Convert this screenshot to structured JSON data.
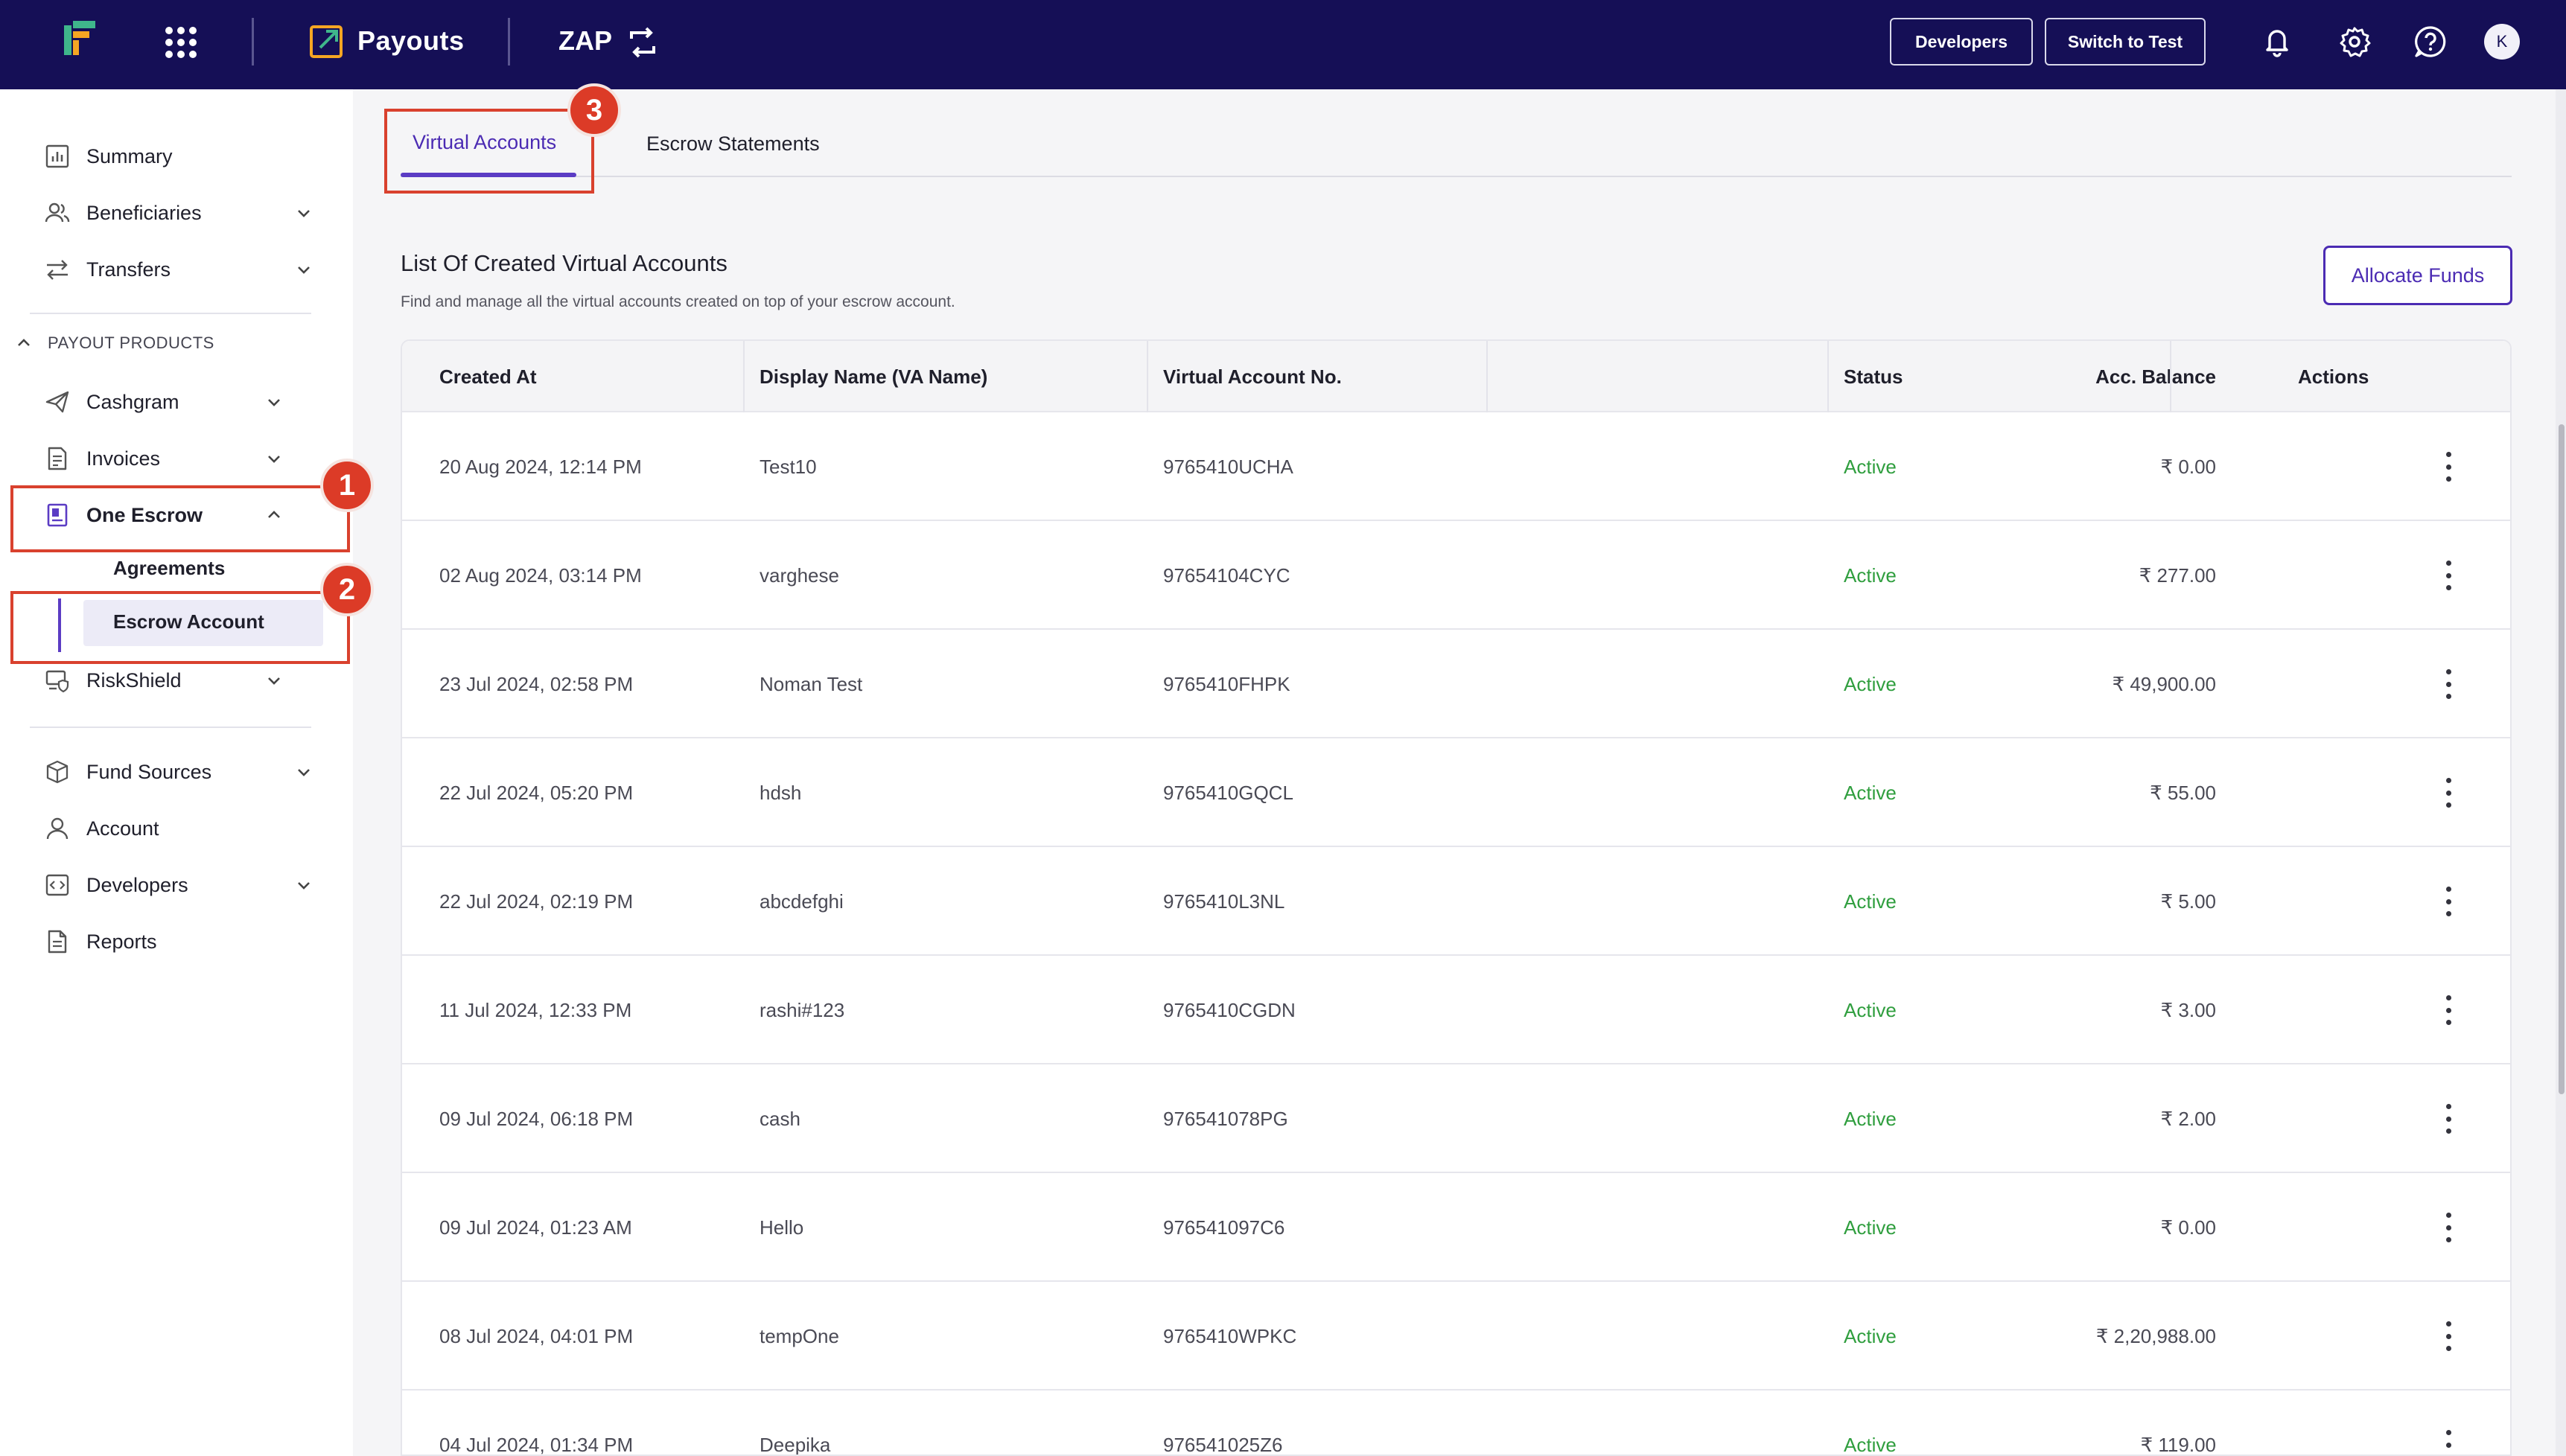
{
  "topbar": {
    "product_name": "Payouts",
    "mode_label": "ZAP",
    "developers_button": "Developers",
    "switch_button": "Switch to Test",
    "avatar_initial": "K",
    "colors": {
      "background": "#150f56",
      "logo_green": "#3fb68b",
      "logo_orange": "#f5a623"
    }
  },
  "sidebar": {
    "items_top": [
      {
        "label": "Summary",
        "icon": "chart-icon"
      },
      {
        "label": "Beneficiaries",
        "icon": "users-icon"
      },
      {
        "label": "Transfers",
        "icon": "arrows-icon"
      }
    ],
    "section_label": "PAYOUT PRODUCTS",
    "products": [
      {
        "label": "Cashgram",
        "icon": "send-icon"
      },
      {
        "label": "Invoices",
        "icon": "invoice-icon"
      },
      {
        "label": "One Escrow",
        "icon": "escrow-icon"
      },
      {
        "label": "RiskShield",
        "icon": "shield-icon"
      }
    ],
    "escrow_children": [
      {
        "label": "Agreements"
      },
      {
        "label": "Escrow Account"
      }
    ],
    "items_bottom": [
      {
        "label": "Fund Sources",
        "icon": "box-icon"
      },
      {
        "label": "Account",
        "icon": "user-icon"
      },
      {
        "label": "Developers",
        "icon": "code-icon"
      },
      {
        "label": "Reports",
        "icon": "document-icon"
      }
    ],
    "annotations": [
      "1",
      "2",
      "3"
    ]
  },
  "tabs": [
    {
      "label": "Virtual Accounts",
      "active": true
    },
    {
      "label": "Escrow Statements",
      "active": false
    }
  ],
  "main": {
    "title": "List Of Created Virtual Accounts",
    "subtitle": "Find and manage all the virtual accounts created on top of your escrow account.",
    "allocate_button": "Allocate Funds",
    "accent_color": "#5b3cc4",
    "status_color": "#2f9e3e"
  },
  "table": {
    "columns": [
      "Created At",
      "Display Name (VA Name)",
      "Virtual Account No.",
      "Acc. Balance",
      "Status",
      "Actions"
    ],
    "rows": [
      {
        "created_at": "20 Aug 2024, 12:14 PM",
        "name": "Test10",
        "account_no": "9765410UCHA",
        "balance": "₹ 0.00",
        "status": "Active"
      },
      {
        "created_at": "02 Aug 2024, 03:14 PM",
        "name": "varghese",
        "account_no": "97654104CYC",
        "balance": "₹ 277.00",
        "status": "Active"
      },
      {
        "created_at": "23 Jul 2024, 02:58 PM",
        "name": "Noman Test",
        "account_no": "9765410FHPK",
        "balance": "₹ 49,900.00",
        "status": "Active"
      },
      {
        "created_at": "22 Jul 2024, 05:20 PM",
        "name": "hdsh",
        "account_no": "9765410GQCL",
        "balance": "₹ 55.00",
        "status": "Active"
      },
      {
        "created_at": "22 Jul 2024, 02:19 PM",
        "name": "abcdefghi",
        "account_no": "9765410L3NL",
        "balance": "₹ 5.00",
        "status": "Active"
      },
      {
        "created_at": "11 Jul 2024, 12:33 PM",
        "name": "rashi#123",
        "account_no": "9765410CGDN",
        "balance": "₹ 3.00",
        "status": "Active"
      },
      {
        "created_at": "09 Jul 2024, 06:18 PM",
        "name": "cash",
        "account_no": "976541078PG",
        "balance": "₹ 2.00",
        "status": "Active"
      },
      {
        "created_at": "09 Jul 2024, 01:23 AM",
        "name": "Hello",
        "account_no": "976541097C6",
        "balance": "₹ 0.00",
        "status": "Active"
      },
      {
        "created_at": "08 Jul 2024, 04:01 PM",
        "name": "tempOne",
        "account_no": "9765410WPKC",
        "balance": "₹ 2,20,988.00",
        "status": "Active"
      },
      {
        "created_at": "04 Jul 2024, 01:34 PM",
        "name": "Deepika",
        "account_no": "976541025Z6",
        "balance": "₹ 119.00",
        "status": "Active"
      }
    ]
  }
}
